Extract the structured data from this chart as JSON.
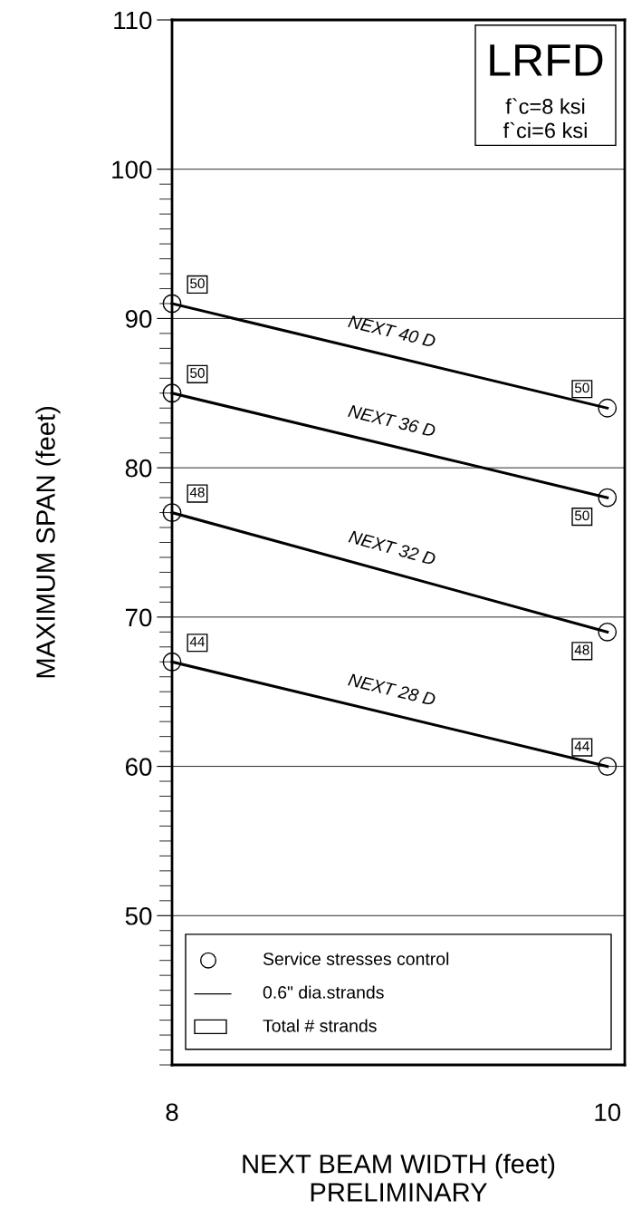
{
  "chart_data": {
    "type": "line",
    "xlabel": "NEXT BEAM WIDTH (feet)",
    "ylabel": "MAXIMUM SPAN (feet)",
    "x": [
      8,
      10
    ],
    "xlim": [
      8,
      10.08
    ],
    "xticks": [
      8,
      10
    ],
    "ylim": [
      40,
      110
    ],
    "yticks": [
      50,
      60,
      70,
      80,
      90,
      100,
      110
    ],
    "grid": "y",
    "marker": "circle",
    "line_style": "solid",
    "series": [
      {
        "name": "NEXT 40 D",
        "color": "#000000",
        "values": [
          91,
          84
        ]
      },
      {
        "name": "NEXT 36 D",
        "color": "#000000",
        "values": [
          85,
          78
        ]
      },
      {
        "name": "NEXT 32 D",
        "color": "#000000",
        "values": [
          77,
          69
        ]
      },
      {
        "name": "NEXT 28 D",
        "color": "#000000",
        "values": [
          67,
          60
        ]
      }
    ],
    "annotations": [
      "LRFD",
      "f`c=8 ksi",
      "f`ci=6 ksi",
      "Service stresses control",
      "0.6\" dia.strands",
      "Total # strands",
      "PRELIMINARY",
      "50",
      "50",
      "50",
      "50",
      "48",
      "48",
      "44",
      "44"
    ]
  }
}
